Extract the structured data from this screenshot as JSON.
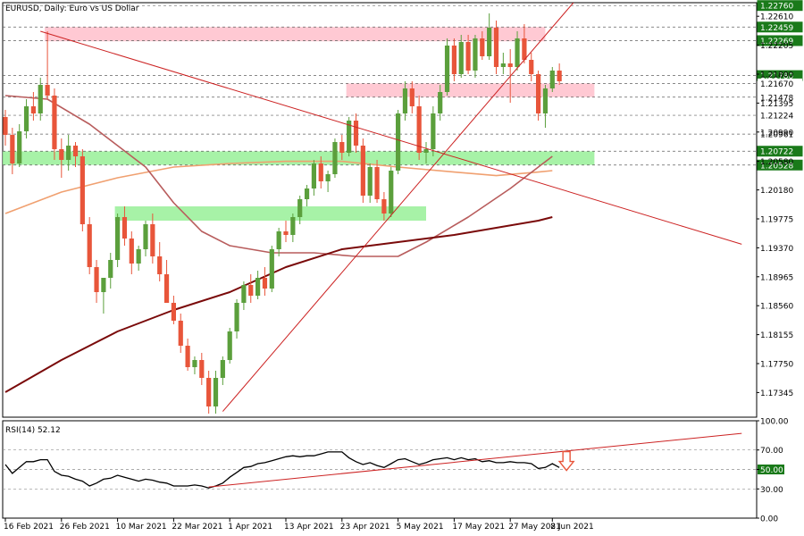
{
  "colors": {
    "bull": "#5b9f3c",
    "bear": "#e8553a",
    "pink_zone": "#ffc0cb",
    "green_zone": "#98f098",
    "trendline": "#cc2222",
    "ma_fast": "#b85c5c",
    "ma_slow": "#f0a070",
    "ma_long": "#7a0a0a",
    "rsi_line": "#000000",
    "rsi_arrow": "#e8553a",
    "badge_bg": "#1a7a1a",
    "grid": "#c0c0c0",
    "axis": "#000000"
  },
  "chart_data": [
    {
      "type": "candlestick",
      "title": "EURUSD, Daily: Euro vs US Dollar",
      "ylim": [
        1.17,
        1.228
      ],
      "x_tick_labels": [
        "16 Feb 2021",
        "26 Feb 2021",
        "10 Mar 2021",
        "22 Mar 2021",
        "1 Apr 2021",
        "13 Apr 2021",
        "23 Apr 2021",
        "5 May 2021",
        "17 May 2021",
        "27 May 2021",
        "8 Jun 2021"
      ],
      "x_tick_index": [
        0,
        8,
        16,
        24,
        32,
        40,
        48,
        56,
        64,
        72,
        78
      ],
      "y_ticks": [
        "1.22610",
        "1.22205",
        "1.21800",
        "1.21395",
        "1.20990",
        "1.20580",
        "1.20180",
        "1.19775",
        "1.19370",
        "1.18965",
        "1.18560",
        "1.18155",
        "1.17750",
        "1.17345"
      ],
      "level_badges": [
        "1.22760",
        "1.22459",
        "1.22269",
        "1.21780",
        "1.21670",
        "1.21478",
        "1.21224",
        "1.20961",
        "1.20722",
        "1.20528"
      ],
      "highlighted_badges": [
        "1.22760",
        "1.22459",
        "1.22269",
        "1.21780",
        "1.20722",
        "1.20528"
      ],
      "zones": [
        {
          "kind": "pink",
          "from_index": 6,
          "to_index": 77,
          "low": 1.2226,
          "high": 1.2246
        },
        {
          "kind": "pink",
          "from_index": 49,
          "to_index": 84,
          "low": 1.2148,
          "high": 1.2167
        },
        {
          "kind": "green",
          "from_index": 0,
          "to_index": 84,
          "low": 1.2053,
          "high": 1.2072
        },
        {
          "kind": "green",
          "from_index": 16,
          "to_index": 60,
          "low": 1.1975,
          "high": 1.1995
        }
      ],
      "trendlines": [
        {
          "from": [
            5,
            1.224
          ],
          "to": [
            105,
            1.1942
          ]
        },
        {
          "from": [
            31,
            1.1708
          ],
          "to": [
            81,
            1.228
          ]
        }
      ],
      "candles": [
        [
          1.212,
          1.213,
          1.208,
          1.2095
        ],
        [
          1.2095,
          1.2105,
          1.204,
          1.2055
        ],
        [
          1.2055,
          1.211,
          1.205,
          1.21
        ],
        [
          1.21,
          1.2145,
          1.209,
          1.2135
        ],
        [
          1.2135,
          1.2155,
          1.2115,
          1.2125
        ],
        [
          1.2125,
          1.2175,
          1.2115,
          1.2165
        ],
        [
          1.2165,
          1.224,
          1.2145,
          1.215
        ],
        [
          1.215,
          1.216,
          1.206,
          1.2075
        ],
        [
          1.2075,
          1.209,
          1.2035,
          1.206
        ],
        [
          1.206,
          1.2095,
          1.2045,
          1.208
        ],
        [
          1.208,
          1.2085,
          1.205,
          1.2065
        ],
        [
          1.2065,
          1.2075,
          1.196,
          1.197
        ],
        [
          1.197,
          1.198,
          1.19,
          1.191
        ],
        [
          1.191,
          1.192,
          1.186,
          1.1875
        ],
        [
          1.1875,
          1.1895,
          1.1845,
          1.1895
        ],
        [
          1.1895,
          1.193,
          1.188,
          1.192
        ],
        [
          1.192,
          1.1985,
          1.191,
          1.198
        ],
        [
          1.198,
          1.1995,
          1.194,
          1.195
        ],
        [
          1.195,
          1.196,
          1.19,
          1.1915
        ],
        [
          1.1915,
          1.194,
          1.1905,
          1.1935
        ],
        [
          1.1935,
          1.1975,
          1.1925,
          1.197
        ],
        [
          1.197,
          1.1985,
          1.1915,
          1.1925
        ],
        [
          1.1925,
          1.1945,
          1.189,
          1.19
        ],
        [
          1.19,
          1.192,
          1.186,
          1.186
        ],
        [
          1.186,
          1.187,
          1.183,
          1.1835
        ],
        [
          1.1835,
          1.1845,
          1.179,
          1.18
        ],
        [
          1.18,
          1.181,
          1.1765,
          1.177
        ],
        [
          1.177,
          1.1785,
          1.176,
          1.178
        ],
        [
          1.178,
          1.179,
          1.1745,
          1.1755
        ],
        [
          1.1755,
          1.1765,
          1.1705,
          1.1715
        ],
        [
          1.1715,
          1.1765,
          1.1705,
          1.1755
        ],
        [
          1.1755,
          1.1785,
          1.1745,
          1.178
        ],
        [
          1.178,
          1.1825,
          1.1775,
          1.182
        ],
        [
          1.182,
          1.1865,
          1.181,
          1.186
        ],
        [
          1.186,
          1.189,
          1.185,
          1.1885
        ],
        [
          1.1885,
          1.19,
          1.186,
          1.187
        ],
        [
          1.187,
          1.1905,
          1.1865,
          1.1895
        ],
        [
          1.1895,
          1.191,
          1.187,
          1.188
        ],
        [
          1.188,
          1.194,
          1.1875,
          1.1935
        ],
        [
          1.1935,
          1.1965,
          1.1925,
          1.196
        ],
        [
          1.196,
          1.1975,
          1.1945,
          1.1955
        ],
        [
          1.1955,
          1.1985,
          1.1945,
          1.198
        ],
        [
          1.198,
          1.201,
          1.197,
          1.2005
        ],
        [
          1.2005,
          1.2025,
          1.1995,
          1.202
        ],
        [
          1.202,
          1.206,
          1.201,
          1.2055
        ],
        [
          1.2055,
          1.2065,
          1.202,
          1.203
        ],
        [
          1.203,
          1.2045,
          1.2015,
          1.204
        ],
        [
          1.204,
          1.209,
          1.2035,
          1.2085
        ],
        [
          1.2085,
          1.2095,
          1.206,
          1.207
        ],
        [
          1.207,
          1.212,
          1.2065,
          1.2115
        ],
        [
          1.2115,
          1.2125,
          1.207,
          1.208
        ],
        [
          1.208,
          1.209,
          1.2,
          1.201
        ],
        [
          1.201,
          1.2055,
          1.2,
          1.205
        ],
        [
          1.205,
          1.206,
          1.2,
          1.2005
        ],
        [
          1.2005,
          1.2015,
          1.1975,
          1.1985
        ],
        [
          1.1985,
          1.205,
          1.198,
          1.2045
        ],
        [
          1.2045,
          1.213,
          1.204,
          1.2125
        ],
        [
          1.2125,
          1.217,
          1.2115,
          1.216
        ],
        [
          1.216,
          1.217,
          1.2125,
          1.2135
        ],
        [
          1.2135,
          1.215,
          1.206,
          1.207
        ],
        [
          1.207,
          1.2085,
          1.2055,
          1.2075
        ],
        [
          1.2075,
          1.2135,
          1.2065,
          1.2125
        ],
        [
          1.2125,
          1.2165,
          1.2115,
          1.2155
        ],
        [
          1.2155,
          1.223,
          1.215,
          1.222
        ],
        [
          1.222,
          1.223,
          1.217,
          1.218
        ],
        [
          1.218,
          1.2235,
          1.2175,
          1.2225
        ],
        [
          1.2225,
          1.2235,
          1.218,
          1.2185
        ],
        [
          1.2185,
          1.2235,
          1.2175,
          1.223
        ],
        [
          1.223,
          1.224,
          1.22,
          1.2205
        ],
        [
          1.2205,
          1.2265,
          1.22,
          1.2245
        ],
        [
          1.2245,
          1.2255,
          1.218,
          1.219
        ],
        [
          1.219,
          1.221,
          1.218,
          1.2195
        ],
        [
          1.2195,
          1.2215,
          1.214,
          1.219
        ],
        [
          1.219,
          1.224,
          1.2185,
          1.223
        ],
        [
          1.223,
          1.225,
          1.2195,
          1.22
        ],
        [
          1.22,
          1.221,
          1.217,
          1.218
        ],
        [
          1.218,
          1.2185,
          1.2115,
          1.2125
        ],
        [
          1.2125,
          1.2165,
          1.2105,
          1.216
        ],
        [
          1.216,
          1.219,
          1.2155,
          1.2185
        ],
        [
          1.2185,
          1.2195,
          1.2165,
          1.217
        ]
      ],
      "ma_fast": [
        [
          0,
          1.215
        ],
        [
          6,
          1.2145
        ],
        [
          12,
          1.211
        ],
        [
          16,
          1.208
        ],
        [
          20,
          1.205
        ],
        [
          24,
          1.2
        ],
        [
          28,
          1.196
        ],
        [
          32,
          1.194
        ],
        [
          38,
          1.193
        ],
        [
          44,
          1.193
        ],
        [
          50,
          1.1925
        ],
        [
          56,
          1.1925
        ],
        [
          60,
          1.1945
        ],
        [
          66,
          1.198
        ],
        [
          72,
          1.202
        ],
        [
          76,
          1.205
        ],
        [
          78,
          1.2065
        ]
      ],
      "ma_slow": [
        [
          0,
          1.1985
        ],
        [
          8,
          1.2015
        ],
        [
          16,
          1.2035
        ],
        [
          24,
          1.205
        ],
        [
          32,
          1.2055
        ],
        [
          40,
          1.2058
        ],
        [
          48,
          1.2058
        ],
        [
          56,
          1.205
        ],
        [
          64,
          1.2043
        ],
        [
          70,
          1.2038
        ],
        [
          76,
          1.2043
        ],
        [
          78,
          1.2045
        ]
      ],
      "ma_long": [
        [
          0,
          1.1735
        ],
        [
          8,
          1.178
        ],
        [
          16,
          1.182
        ],
        [
          24,
          1.185
        ],
        [
          32,
          1.1875
        ],
        [
          40,
          1.191
        ],
        [
          48,
          1.1935
        ],
        [
          56,
          1.1945
        ],
        [
          64,
          1.1955
        ],
        [
          70,
          1.1965
        ],
        [
          76,
          1.1975
        ],
        [
          78,
          1.198
        ]
      ]
    },
    {
      "type": "line",
      "title": "RSI(14) 52.12",
      "ylim": [
        0,
        100
      ],
      "y_ticks": [
        "100.00",
        "70.00",
        "50.00",
        "30.00",
        "0.00"
      ],
      "highlighted_badge": "50.00",
      "levels": [
        70,
        50,
        30
      ],
      "values": [
        55,
        46,
        52,
        58,
        58,
        60,
        60,
        48,
        44,
        43,
        40,
        38,
        33,
        36,
        40,
        41,
        44,
        42,
        40,
        38,
        40,
        39,
        37,
        36,
        33,
        33,
        33,
        34,
        33,
        31,
        33,
        36,
        42,
        47,
        52,
        53,
        56,
        57,
        59,
        61,
        63,
        64,
        63,
        64,
        64,
        66,
        68,
        68,
        68,
        62,
        58,
        55,
        57,
        54,
        52,
        56,
        60,
        61,
        58,
        55,
        57,
        60,
        61,
        62,
        60,
        62,
        60,
        61,
        58,
        59,
        57,
        57,
        58,
        57,
        57,
        56,
        51,
        52,
        56,
        52
      ],
      "trendlines": [
        {
          "from": [
            29,
            32
          ],
          "to": [
            105,
            87
          ]
        }
      ]
    }
  ]
}
